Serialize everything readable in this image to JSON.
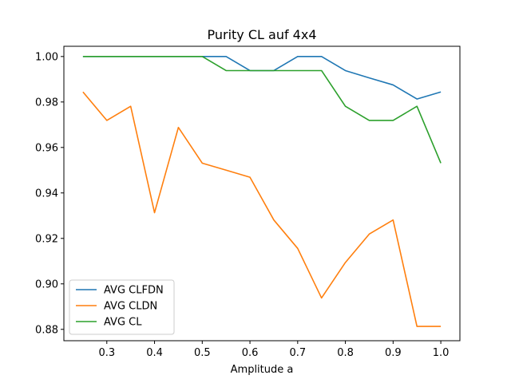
{
  "chart_data": {
    "type": "line",
    "title": "Purity CL auf 4x4",
    "xlabel": "Amplitude a",
    "ylabel": "",
    "xlim": [
      0.21,
      1.04
    ],
    "ylim": [
      0.875,
      1.0045
    ],
    "xticks": [
      0.3,
      0.4,
      0.5,
      0.6,
      0.7,
      0.8,
      0.9,
      1.0
    ],
    "xtick_labels": [
      "0.3",
      "0.4",
      "0.5",
      "0.6",
      "0.7",
      "0.8",
      "0.9",
      "1.0"
    ],
    "yticks": [
      0.88,
      0.9,
      0.92,
      0.94,
      0.96,
      0.98,
      1.0
    ],
    "ytick_labels": [
      "0.88",
      "0.90",
      "0.92",
      "0.94",
      "0.96",
      "0.98",
      "1.00"
    ],
    "x": [
      0.25,
      0.3,
      0.35,
      0.4,
      0.45,
      0.5,
      0.55,
      0.6,
      0.65,
      0.7,
      0.75,
      0.8,
      0.85,
      0.9,
      0.95,
      1.0
    ],
    "legend_position": "lower-left",
    "series": [
      {
        "name": "AVG CLFDN",
        "color": "#1f77b4",
        "values": [
          1.0,
          1.0,
          1.0,
          1.0,
          1.0,
          1.0,
          1.0,
          0.9938,
          0.9938,
          1.0,
          1.0,
          0.9938,
          0.9906,
          0.9875,
          0.9813,
          0.9844
        ]
      },
      {
        "name": "AVG CLDN",
        "color": "#ff7f0e",
        "values": [
          0.9844,
          0.9719,
          0.9781,
          0.9313,
          0.9688,
          0.9531,
          0.95,
          0.9469,
          0.9281,
          0.9156,
          0.8938,
          0.9094,
          0.9219,
          0.9281,
          0.8813,
          0.8813
        ]
      },
      {
        "name": "AVG CL",
        "color": "#2ca02c",
        "values": [
          1.0,
          1.0,
          1.0,
          1.0,
          1.0,
          1.0,
          0.9938,
          0.9938,
          0.9938,
          0.9938,
          0.9938,
          0.9781,
          0.9719,
          0.9719,
          0.9781,
          0.9531
        ]
      }
    ]
  }
}
